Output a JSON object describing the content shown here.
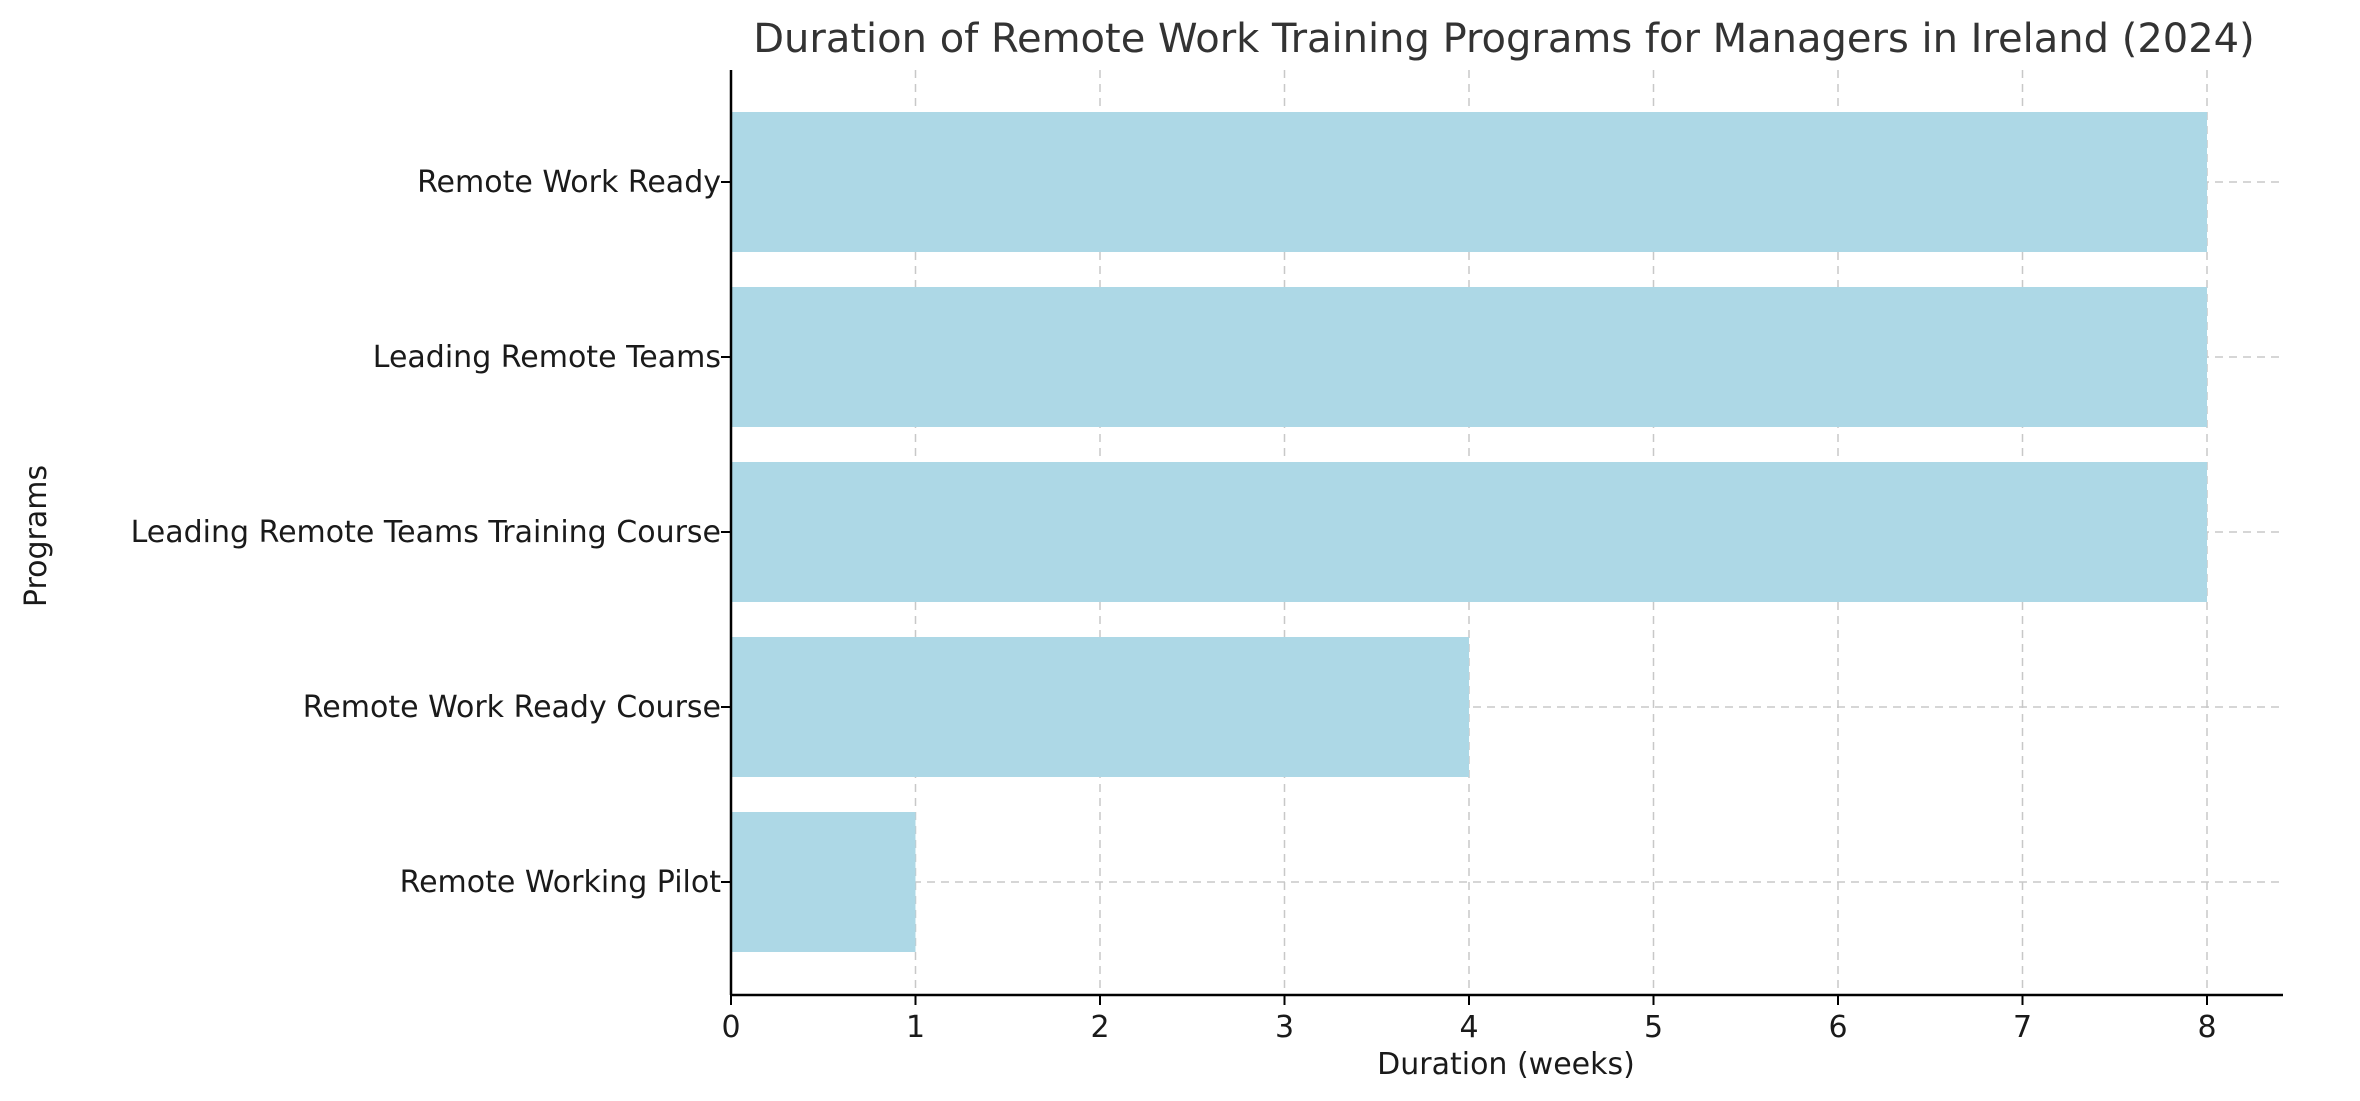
{
  "chart_data": {
    "type": "bar",
    "orientation": "horizontal",
    "title": "Duration of Remote Work Training Programs for Managers in Ireland (2024)",
    "xlabel": "Duration (weeks)",
    "ylabel": "Programs",
    "categories": [
      "Remote Work Ready",
      "Leading Remote Teams",
      "Leading Remote Teams Training Course",
      "Remote Work Ready Course",
      "Remote Working Pilot"
    ],
    "values": [
      8,
      8,
      8,
      4,
      1
    ],
    "xlim": [
      0,
      8.4
    ],
    "xticks": [
      "0",
      "1",
      "2",
      "3",
      "4",
      "5",
      "6",
      "7",
      "8"
    ],
    "grid": true,
    "bar_color": "#add8e6"
  }
}
